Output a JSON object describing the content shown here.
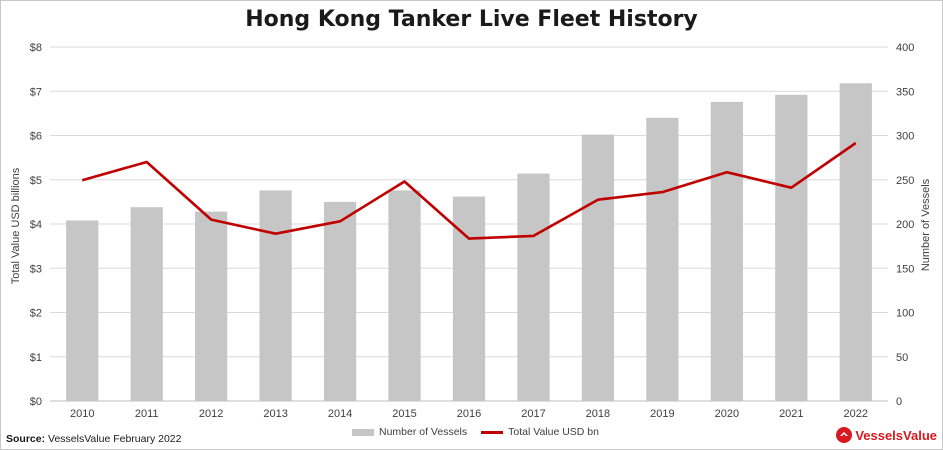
{
  "title": "Hong Kong Tanker Live Fleet History",
  "source_label": "Source:",
  "source_text": "VesselsValue February 2022",
  "brand": "VesselsValue",
  "colors": {
    "bars": "#c6c6c6",
    "line": "#c00000",
    "grid": "#d9d9d9",
    "brand": "#d71920"
  },
  "chart_data": {
    "type": "bar",
    "title": "Hong Kong Tanker Live Fleet History",
    "categories": [
      "2010",
      "2011",
      "2012",
      "2013",
      "2014",
      "2015",
      "2016",
      "2017",
      "2018",
      "2019",
      "2020",
      "2021",
      "2022"
    ],
    "series": [
      {
        "name": "Number of Vessels",
        "type": "bar",
        "axis": "right",
        "values": [
          204,
          219,
          214,
          238,
          225,
          238,
          231,
          257,
          301,
          320,
          338,
          346,
          359
        ]
      },
      {
        "name": "Total Value USD bn",
        "type": "line",
        "axis": "left",
        "values": [
          4.99,
          5.4,
          4.1,
          3.78,
          4.06,
          4.96,
          3.67,
          3.73,
          4.55,
          4.72,
          5.17,
          4.82,
          5.83
        ]
      }
    ],
    "ylabel": "Total Value USD billions",
    "y2label": "Number of Vessels",
    "ylim": [
      0,
      8
    ],
    "y2lim": [
      0,
      400
    ],
    "yticks": [
      "$0",
      "$1",
      "$2",
      "$3",
      "$4",
      "$5",
      "$6",
      "$7",
      "$8"
    ],
    "y2ticks": [
      "0",
      "50",
      "100",
      "150",
      "200",
      "250",
      "300",
      "350",
      "400"
    ],
    "grid": true,
    "legend_position": "bottom"
  }
}
